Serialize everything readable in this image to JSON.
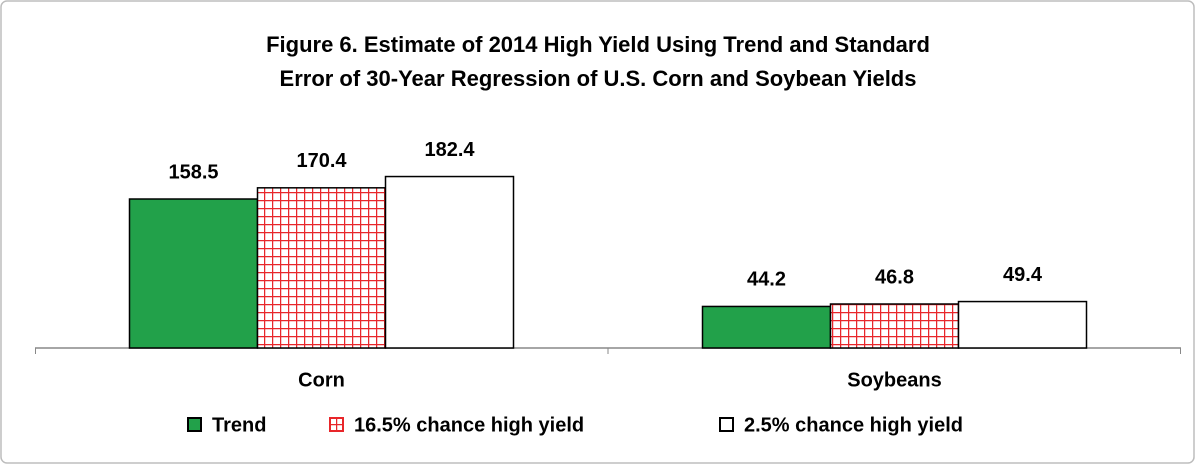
{
  "chart_data": {
    "type": "bar",
    "title": "Figure 6.  Estimate of 2014 High Yield Using Trend and Standard",
    "subtitle": "Error of 30-Year Regression of U.S. Corn and Soybean Yields",
    "categories": [
      "Corn",
      "Soybeans"
    ],
    "series": [
      {
        "name": "Trend",
        "color": "#22a14a",
        "values": [
          158.5,
          44.2
        ]
      },
      {
        "name": "16.5% chance high yield",
        "color": "#e8262a",
        "values": [
          170.4,
          46.8
        ]
      },
      {
        "name": "2.5% chance high yield",
        "color": "#ffffff",
        "values": [
          182.4,
          49.4
        ]
      }
    ],
    "ylim": [
      0,
      200
    ],
    "legend": "bottom"
  }
}
